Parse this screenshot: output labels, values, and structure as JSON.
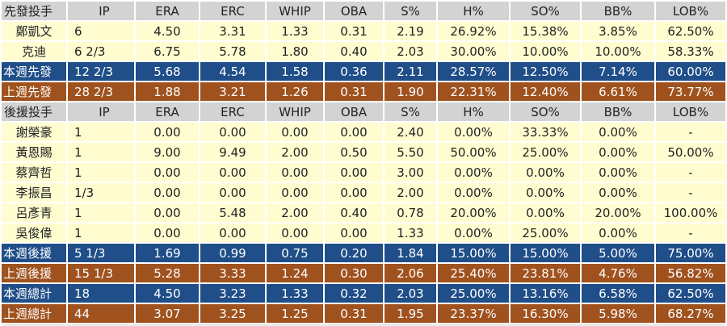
{
  "colors": {
    "header_bg": "#d3d3d3",
    "player_row_bg": "#fffdd0",
    "this_week_bg": "#1f4e88",
    "last_week_bg": "#a0521e"
  },
  "starters": {
    "header": [
      "先發投手",
      "IP",
      "ERA",
      "ERC",
      "WHIP",
      "OBA",
      "S%",
      "H%",
      "SO%",
      "BB%",
      "LOB%"
    ],
    "rows": [
      [
        "鄭凱文",
        "6",
        "4.50",
        "3.31",
        "1.33",
        "0.31",
        "2.19",
        "26.92%",
        "15.38%",
        "3.85%",
        "62.50%"
      ],
      [
        "克迪",
        "6 2/3",
        "6.75",
        "5.78",
        "1.80",
        "0.40",
        "2.03",
        "30.00%",
        "10.00%",
        "10.00%",
        "58.33%"
      ]
    ],
    "this_week": [
      "本週先發",
      "12 2/3",
      "5.68",
      "4.54",
      "1.58",
      "0.36",
      "2.11",
      "28.57%",
      "12.50%",
      "7.14%",
      "60.00%"
    ],
    "last_week": [
      "上週先發",
      "28 2/3",
      "1.88",
      "3.21",
      "1.26",
      "0.31",
      "1.90",
      "22.31%",
      "12.40%",
      "6.61%",
      "73.77%"
    ]
  },
  "relievers": {
    "header": [
      "後援投手",
      "IP",
      "ERA",
      "ERC",
      "WHIP",
      "OBA",
      "S%",
      "H%",
      "SO%",
      "BB%",
      "LOB%"
    ],
    "rows": [
      [
        "謝榮豪",
        "1",
        "0.00",
        "0.00",
        "0.00",
        "0.00",
        "2.40",
        "0.00%",
        "33.33%",
        "0.00%",
        "-"
      ],
      [
        "黃恩賜",
        "1",
        "9.00",
        "9.49",
        "2.00",
        "0.50",
        "5.50",
        "50.00%",
        "25.00%",
        "0.00%",
        "50.00%"
      ],
      [
        "蔡齊哲",
        "1",
        "0.00",
        "0.00",
        "0.00",
        "0.00",
        "3.00",
        "0.00%",
        "0.00%",
        "0.00%",
        "-"
      ],
      [
        "李振昌",
        "1/3",
        "0.00",
        "0.00",
        "0.00",
        "0.00",
        "2.00",
        "0.00%",
        "0.00%",
        "0.00%",
        "-"
      ],
      [
        "呂彥青",
        "1",
        "0.00",
        "5.48",
        "2.00",
        "0.40",
        "0.78",
        "20.00%",
        "0.00%",
        "20.00%",
        "100.00%"
      ],
      [
        "吳俊偉",
        "1",
        "0.00",
        "0.00",
        "0.00",
        "0.00",
        "1.33",
        "0.00%",
        "25.00%",
        "0.00%",
        "-"
      ]
    ],
    "this_week": [
      "本週後援",
      "5 1/3",
      "1.69",
      "0.99",
      "0.75",
      "0.20",
      "1.84",
      "15.00%",
      "15.00%",
      "5.00%",
      "75.00%"
    ],
    "last_week": [
      "上週後援",
      "15 1/3",
      "5.28",
      "3.33",
      "1.24",
      "0.30",
      "2.06",
      "25.40%",
      "23.81%",
      "4.76%",
      "56.82%"
    ]
  },
  "totals": {
    "this_week": [
      "本週總計",
      "18",
      "4.50",
      "3.23",
      "1.33",
      "0.32",
      "2.03",
      "25.00%",
      "13.16%",
      "6.58%",
      "62.50%"
    ],
    "last_week": [
      "上週總計",
      "44",
      "3.07",
      "3.25",
      "1.25",
      "0.31",
      "1.95",
      "23.37%",
      "16.30%",
      "5.98%",
      "68.27%"
    ]
  }
}
